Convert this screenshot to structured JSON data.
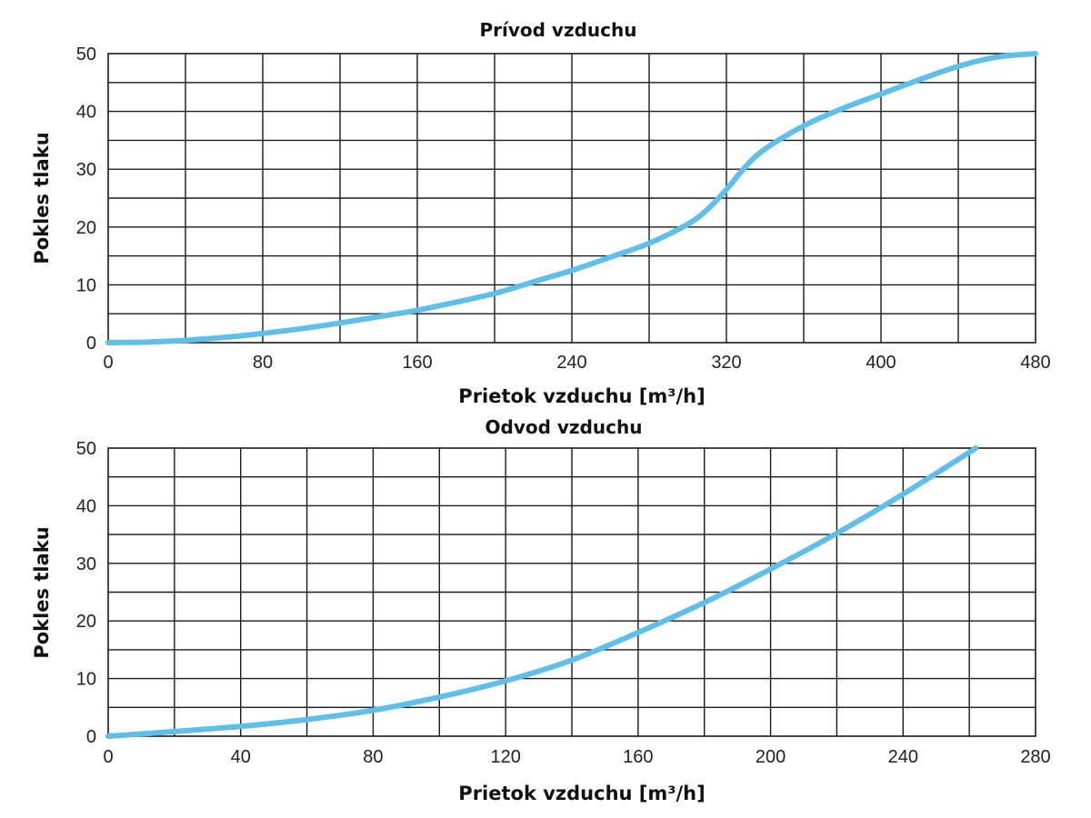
{
  "chart_data": [
    {
      "type": "line",
      "title": "Prívod vzduchu",
      "xlabel": "Prietok vzduchu [m³/h]",
      "ylabel": "Pokles tlaku",
      "xlim": [
        0,
        480
      ],
      "ylim": [
        0,
        50
      ],
      "x_ticks": [
        0,
        80,
        160,
        240,
        320,
        400,
        480
      ],
      "y_ticks": [
        0,
        10,
        20,
        30,
        40,
        50
      ],
      "x_grid_step": 40,
      "y_grid_step": 5,
      "grid": true,
      "line_color": "#5ec0ea",
      "series": [
        {
          "x": [
            0,
            20,
            40,
            60,
            80,
            100,
            120,
            140,
            160,
            180,
            200,
            220,
            240,
            260,
            280,
            300,
            310,
            320,
            330,
            340,
            360,
            380,
            400,
            420,
            440,
            460,
            480
          ],
          "y": [
            0,
            0.1,
            0.4,
            0.9,
            1.6,
            2.4,
            3.4,
            4.5,
            5.6,
            7.0,
            8.5,
            10.5,
            12.5,
            14.8,
            17.2,
            20.5,
            23.0,
            26.5,
            30.5,
            33.5,
            37.5,
            40.5,
            43.0,
            45.5,
            47.8,
            49.4,
            50.0
          ]
        }
      ]
    },
    {
      "type": "line",
      "title": "Odvod vzduchu",
      "xlabel": "Prietok vzduchu [m³/h]",
      "ylabel": "Pokles tlaku",
      "xlim": [
        0,
        280
      ],
      "ylim": [
        0,
        50
      ],
      "x_ticks": [
        0,
        40,
        80,
        120,
        160,
        200,
        240,
        280
      ],
      "y_ticks": [
        0,
        10,
        20,
        30,
        40,
        50
      ],
      "x_grid_step": 20,
      "y_grid_step": 5,
      "grid": true,
      "line_color": "#5ec0ea",
      "series": [
        {
          "x": [
            0,
            20,
            40,
            60,
            80,
            100,
            120,
            140,
            160,
            180,
            200,
            220,
            240,
            262
          ],
          "y": [
            0,
            0.8,
            1.7,
            2.9,
            4.5,
            6.8,
            9.6,
            13.2,
            18.0,
            23.2,
            29.0,
            35.2,
            42.0,
            50.0
          ]
        }
      ]
    }
  ]
}
